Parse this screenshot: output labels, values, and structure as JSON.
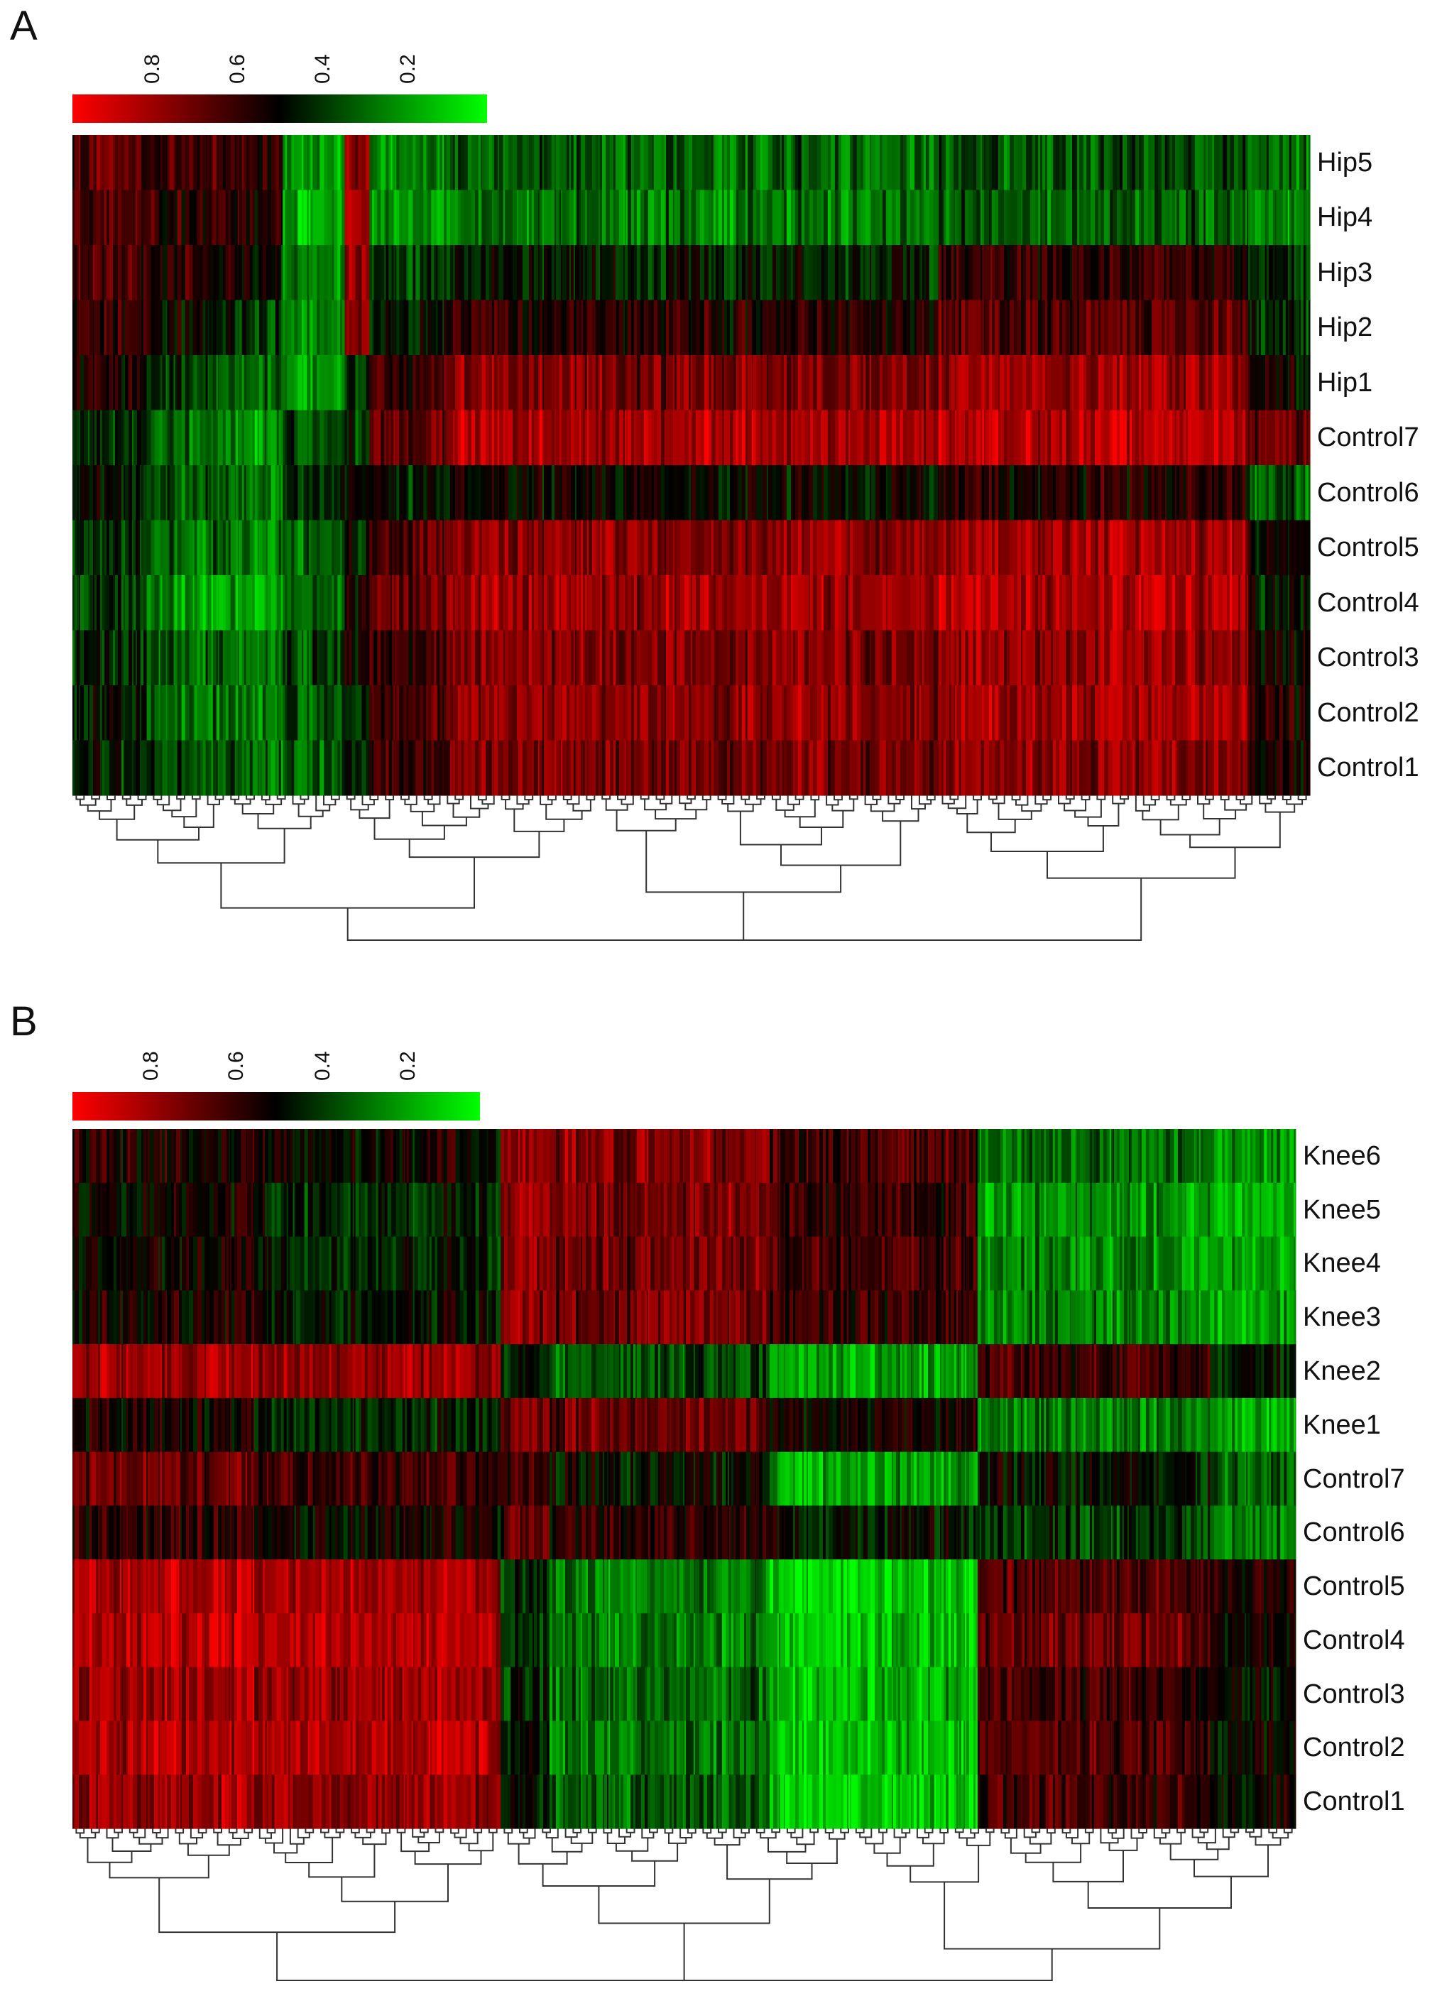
{
  "chart_data": [
    {
      "type": "heatmap",
      "panel_label": "A",
      "colorbar": {
        "ticks": [
          "0.8",
          "0.6",
          "0.4",
          "0.2"
        ],
        "colors": [
          "#ff0000",
          "#000000",
          "#00ff00"
        ]
      },
      "rows": [
        "Hip5",
        "Hip4",
        "Hip3",
        "Hip2",
        "Hip1",
        "Control7",
        "Control6",
        "Control5",
        "Control4",
        "Control3",
        "Control2",
        "Control1"
      ],
      "column_blocks": [
        {
          "frac": 0.06,
          "values": [
            0.66,
            0.66,
            0.62,
            0.58,
            0.55,
            0.4,
            0.46,
            0.4,
            0.38,
            0.4,
            0.45,
            0.42
          ]
        },
        {
          "frac": 0.05,
          "values": [
            0.62,
            0.6,
            0.58,
            0.52,
            0.4,
            0.28,
            0.36,
            0.3,
            0.22,
            0.32,
            0.3,
            0.4
          ]
        },
        {
          "frac": 0.06,
          "values": [
            0.6,
            0.58,
            0.52,
            0.42,
            0.3,
            0.22,
            0.3,
            0.28,
            0.18,
            0.3,
            0.26,
            0.32
          ]
        },
        {
          "frac": 0.05,
          "values": [
            0.2,
            0.18,
            0.22,
            0.24,
            0.22,
            0.32,
            0.4,
            0.32,
            0.3,
            0.36,
            0.32,
            0.3
          ]
        },
        {
          "frac": 0.02,
          "values": [
            0.82,
            0.8,
            0.8,
            0.75,
            0.45,
            0.4,
            0.5,
            0.45,
            0.55,
            0.55,
            0.4,
            0.45
          ]
        },
        {
          "frac": 0.06,
          "values": [
            0.22,
            0.18,
            0.36,
            0.44,
            0.62,
            0.66,
            0.44,
            0.62,
            0.7,
            0.6,
            0.62,
            0.6
          ]
        },
        {
          "frac": 0.4,
          "values": [
            0.3,
            0.26,
            0.44,
            0.56,
            0.74,
            0.82,
            0.5,
            0.76,
            0.8,
            0.74,
            0.76,
            0.72
          ]
        },
        {
          "frac": 0.25,
          "values": [
            0.36,
            0.32,
            0.6,
            0.66,
            0.8,
            0.86,
            0.56,
            0.82,
            0.84,
            0.8,
            0.82,
            0.78
          ]
        },
        {
          "frac": 0.05,
          "values": [
            0.3,
            0.24,
            0.4,
            0.42,
            0.5,
            0.7,
            0.32,
            0.5,
            0.48,
            0.5,
            0.55,
            0.52
          ]
        }
      ],
      "dendrogram": true
    },
    {
      "type": "heatmap",
      "panel_label": "B",
      "colorbar": {
        "ticks": [
          "0.8",
          "0.6",
          "0.4",
          "0.2"
        ],
        "colors": [
          "#ff0000",
          "#000000",
          "#00ff00"
        ]
      },
      "rows": [
        "Knee6",
        "Knee5",
        "Knee4",
        "Knee3",
        "Knee2",
        "Knee1",
        "Control7",
        "Control6",
        "Control5",
        "Control4",
        "Control3",
        "Control2",
        "Control1"
      ],
      "column_blocks": [
        {
          "frac": 0.16,
          "values": [
            0.56,
            0.52,
            0.52,
            0.54,
            0.82,
            0.54,
            0.7,
            0.58,
            0.84,
            0.86,
            0.82,
            0.84,
            0.8
          ]
        },
        {
          "frac": 0.19,
          "values": [
            0.5,
            0.42,
            0.44,
            0.46,
            0.8,
            0.42,
            0.62,
            0.52,
            0.84,
            0.86,
            0.8,
            0.84,
            0.78
          ]
        },
        {
          "frac": 0.04,
          "values": [
            0.8,
            0.78,
            0.76,
            0.76,
            0.46,
            0.74,
            0.62,
            0.68,
            0.4,
            0.42,
            0.42,
            0.44,
            0.46
          ]
        },
        {
          "frac": 0.18,
          "values": [
            0.76,
            0.74,
            0.72,
            0.72,
            0.34,
            0.7,
            0.48,
            0.58,
            0.26,
            0.24,
            0.3,
            0.26,
            0.32
          ]
        },
        {
          "frac": 0.17,
          "values": [
            0.62,
            0.6,
            0.62,
            0.6,
            0.18,
            0.52,
            0.18,
            0.46,
            0.1,
            0.12,
            0.14,
            0.12,
            0.1
          ]
        },
        {
          "frac": 0.19,
          "values": [
            0.3,
            0.22,
            0.24,
            0.24,
            0.62,
            0.26,
            0.48,
            0.4,
            0.66,
            0.72,
            0.62,
            0.66,
            0.62
          ]
        },
        {
          "frac": 0.07,
          "values": [
            0.18,
            0.14,
            0.16,
            0.16,
            0.44,
            0.14,
            0.3,
            0.24,
            0.54,
            0.5,
            0.46,
            0.5,
            0.48
          ]
        }
      ],
      "dendrogram": true
    }
  ]
}
